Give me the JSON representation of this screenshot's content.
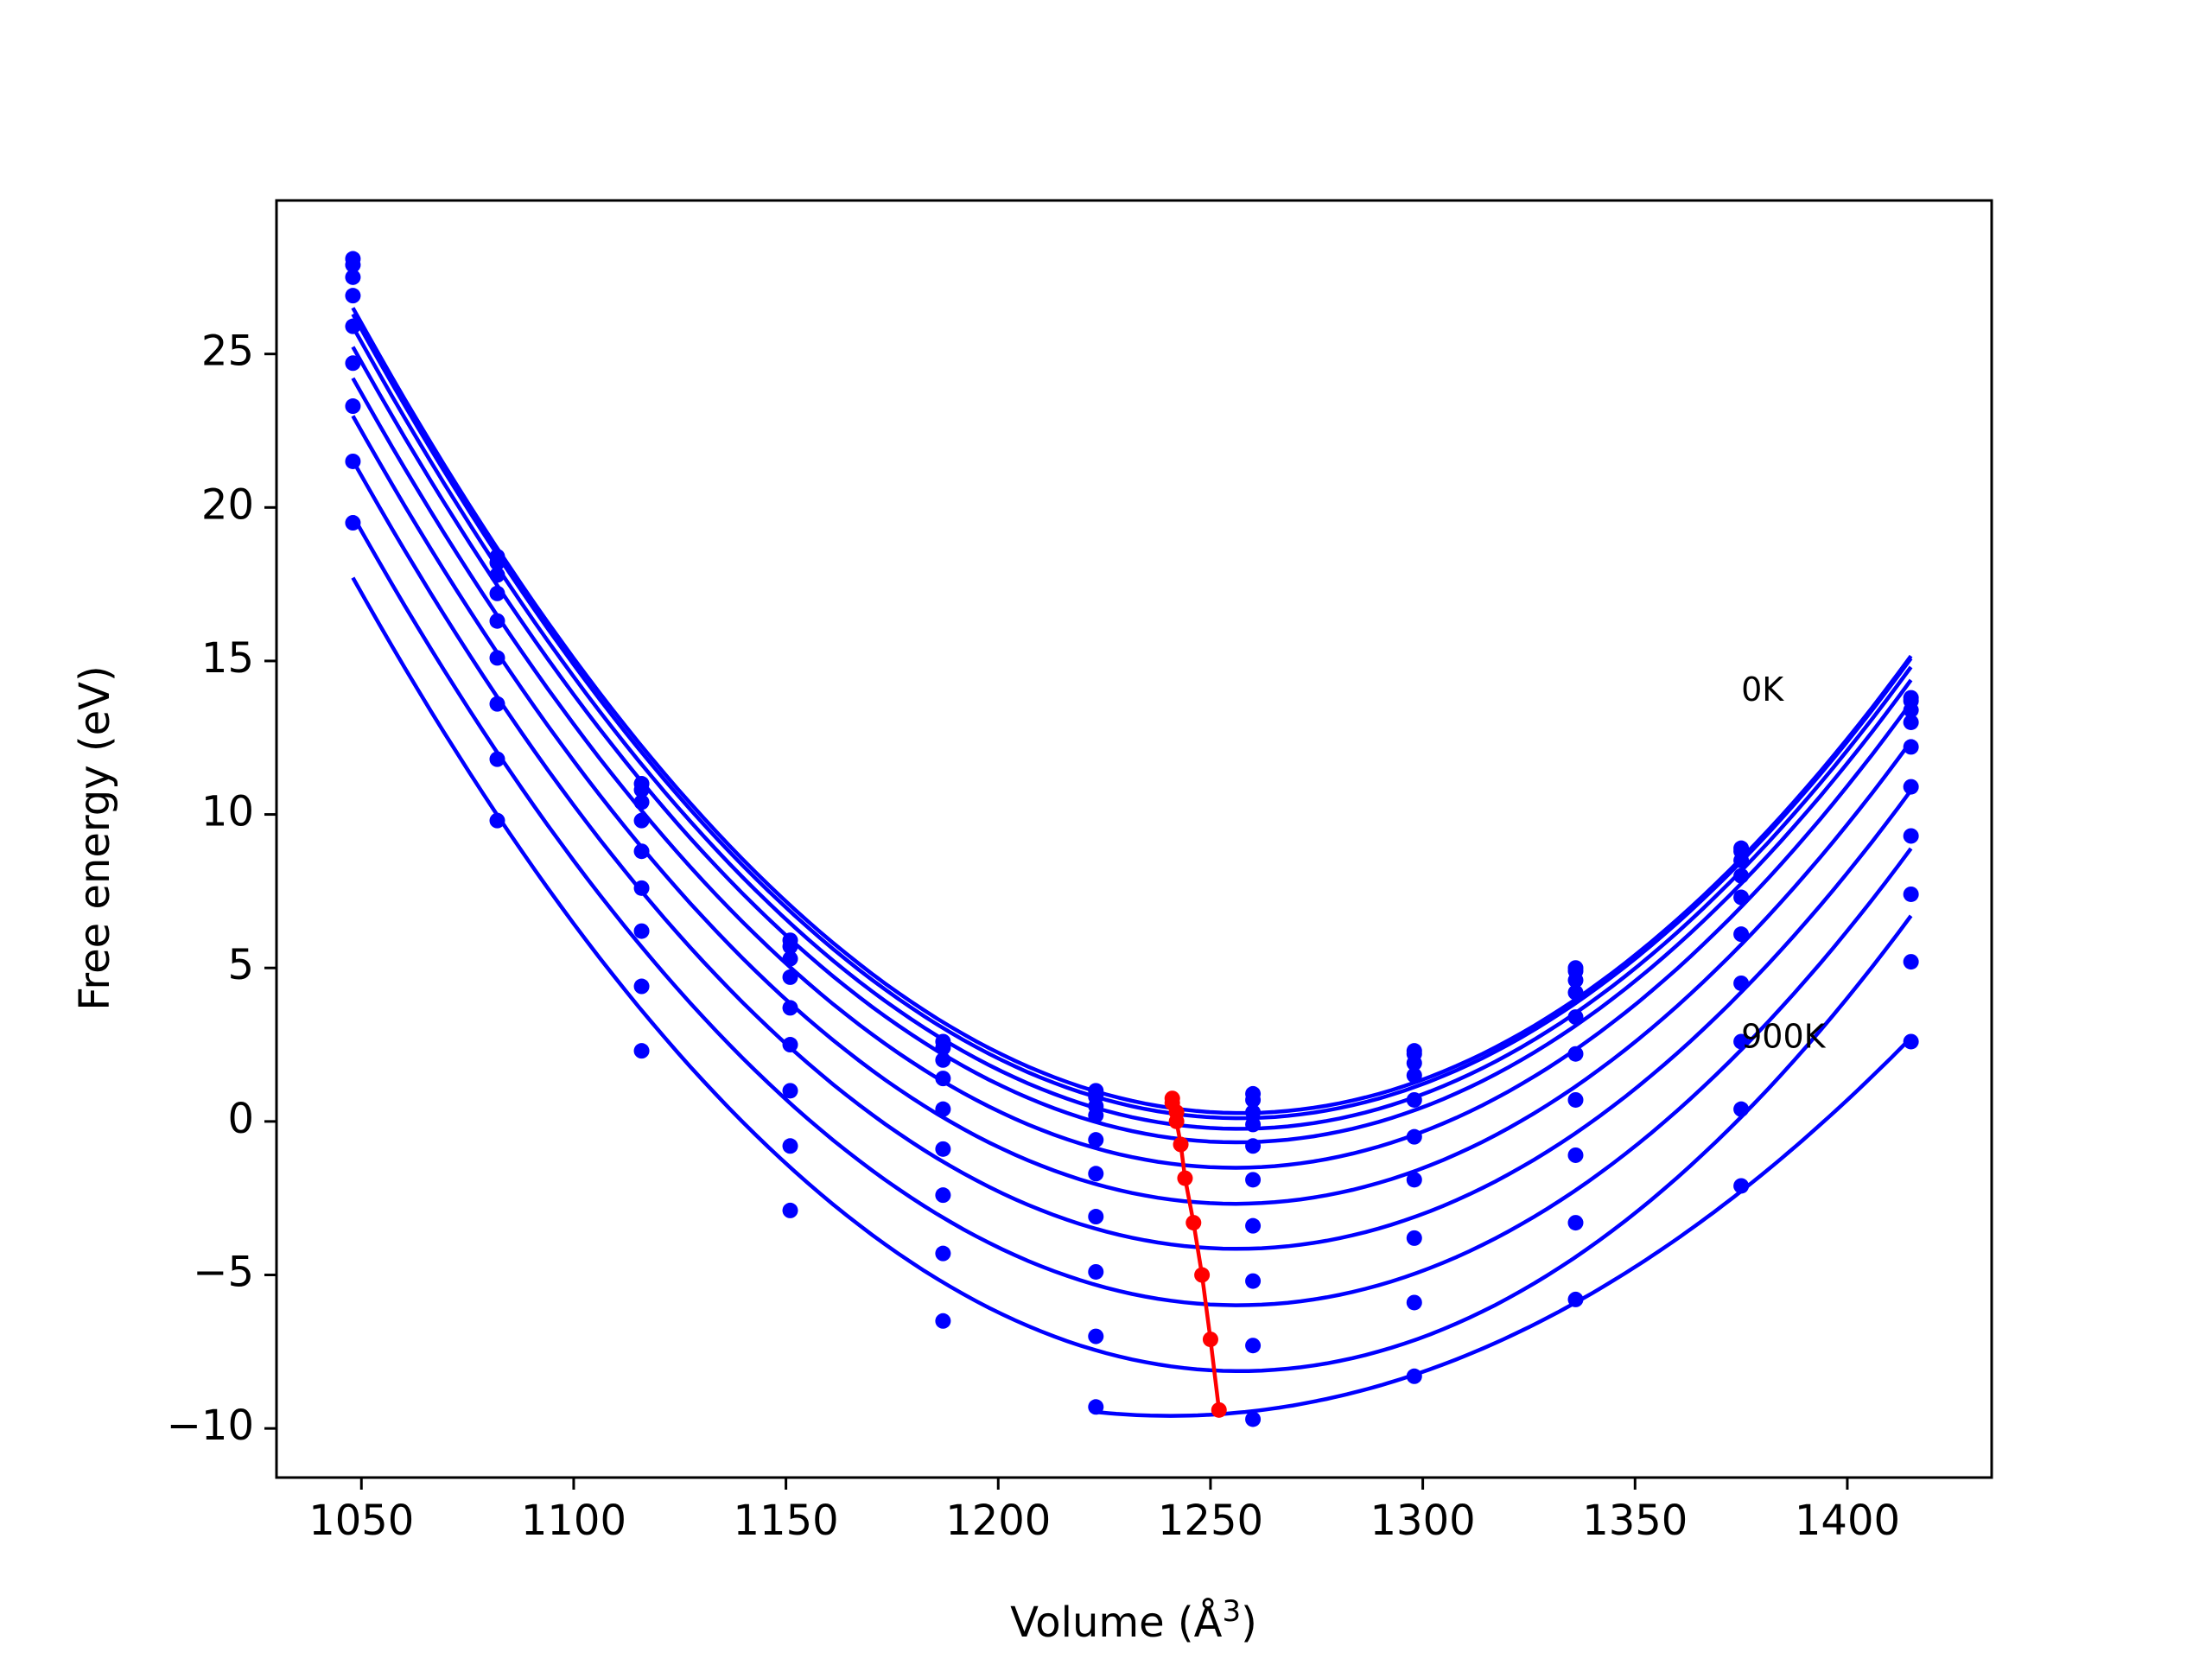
{
  "chart_data": {
    "type": "line",
    "title": "",
    "xlabel": "Volume",
    "xlabel_unit_base": "Å",
    "xlabel_unit_exp": "3",
    "ylabel": "Free energy (eV)",
    "xlim": [
      1030,
      1434
    ],
    "ylim": [
      -11.6,
      30
    ],
    "xticks": [
      1050,
      1100,
      1150,
      1200,
      1250,
      1300,
      1350,
      1400
    ],
    "yticks": [
      -10,
      -5,
      0,
      5,
      10,
      15,
      20,
      25
    ],
    "ytick_labels": [
      "−10",
      "−5",
      "0",
      "5",
      "10",
      "15",
      "20",
      "25"
    ],
    "grid": false,
    "legend": false,
    "colors": {
      "curves": "#0000ff",
      "minima": "#ff0000"
    },
    "annotations": [
      {
        "text": "0K",
        "x": 1375,
        "y": 14.0
      },
      {
        "text": "900K",
        "x": 1375,
        "y": 2.7
      }
    ],
    "volumes": [
      1048,
      1082,
      1116,
      1151,
      1187,
      1223,
      1260,
      1298,
      1336,
      1375,
      1415
    ],
    "series": [
      {
        "values": [
          28.1,
          18.4,
          11.0,
          5.9,
          2.6,
          1.0,
          0.9,
          2.3,
          5.0,
          8.9,
          13.8
        ],
        "minimum": [
          1241,
          0.75
        ]
      },
      {
        "values": [
          27.9,
          18.2,
          10.8,
          5.7,
          2.4,
          0.8,
          0.7,
          2.2,
          4.9,
          8.8,
          13.7
        ],
        "minimum": [
          1241,
          0.6
        ]
      },
      {
        "values": [
          27.5,
          17.8,
          10.4,
          5.3,
          2.0,
          0.5,
          0.3,
          1.9,
          4.6,
          8.5,
          13.4
        ],
        "minimum": [
          1242,
          0.3
        ]
      },
      {
        "values": [
          26.9,
          17.2,
          9.8,
          4.7,
          1.4,
          0.2,
          -0.1,
          1.5,
          4.2,
          8.0,
          13.0
        ],
        "minimum": [
          1242,
          0.0
        ]
      },
      {
        "values": [
          25.9,
          16.3,
          8.8,
          3.7,
          0.4,
          -0.6,
          -0.8,
          0.7,
          3.4,
          7.3,
          12.2
        ],
        "minimum": [
          1243,
          -0.75
        ]
      },
      {
        "values": [
          24.7,
          15.1,
          7.6,
          2.5,
          -0.9,
          -1.7,
          -1.9,
          -0.5,
          2.2,
          6.1,
          10.9
        ],
        "minimum": [
          1244,
          -1.85
        ]
      },
      {
        "values": [
          23.3,
          13.6,
          6.2,
          1.0,
          -2.4,
          -3.1,
          -3.4,
          -1.9,
          0.7,
          4.5,
          9.3
        ],
        "minimum": [
          1246,
          -3.3
        ]
      },
      {
        "values": [
          21.5,
          11.8,
          4.4,
          -0.8,
          -4.3,
          -4.9,
          -5.2,
          -3.8,
          -1.1,
          2.6,
          7.4
        ],
        "minimum": [
          1248,
          -5.0
        ]
      },
      {
        "values": [
          19.5,
          9.8,
          2.3,
          -2.9,
          -6.5,
          -7.0,
          -7.3,
          -5.9,
          -3.3,
          0.4,
          5.2
        ],
        "minimum": [
          1250,
          -7.1
        ]
      },
      {
        "values": [
          null,
          null,
          null,
          null,
          null,
          -9.3,
          -9.7,
          -8.3,
          -5.8,
          -2.1,
          2.6
        ],
        "minimum": [
          1252,
          -9.4
        ]
      }
    ]
  }
}
